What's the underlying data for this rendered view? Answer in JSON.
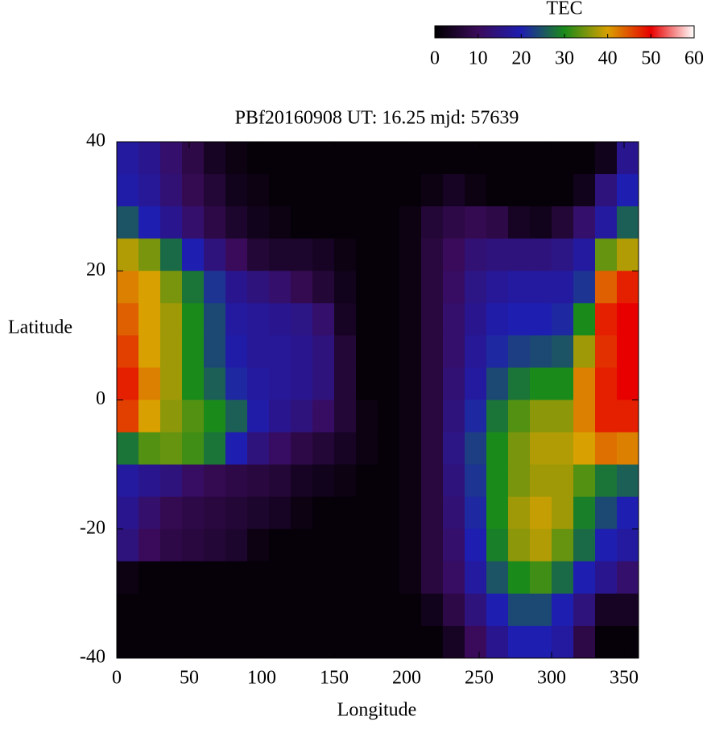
{
  "chart_data": {
    "type": "heatmap",
    "title": "PBf20160908  UT: 16.25  mjd: 57639",
    "x_label": "Longitude",
    "y_label": "Latitude",
    "x": [
      7.5,
      22.5,
      37.5,
      52.5,
      67.5,
      82.5,
      97.5,
      112.5,
      127.5,
      142.5,
      157.5,
      172.5,
      187.5,
      202.5,
      217.5,
      232.5,
      247.5,
      262.5,
      277.5,
      292.5,
      307.5,
      322.5,
      337.5,
      352.5
    ],
    "y": [
      37.5,
      32.5,
      27.5,
      22.5,
      17.5,
      12.5,
      7.5,
      2.5,
      -2.5,
      -7.5,
      -12.5,
      -17.5,
      -22.5,
      -27.5,
      -32.5,
      -37.5
    ],
    "values": [
      [
        18,
        16,
        12,
        8,
        4,
        2,
        1,
        1,
        1,
        1,
        1,
        1,
        1,
        1,
        1,
        1,
        1,
        1,
        1,
        1,
        1,
        1,
        3,
        16
      ],
      [
        19,
        17,
        13,
        9,
        6,
        3,
        2,
        1,
        1,
        1,
        1,
        1,
        1,
        1,
        2,
        4,
        2,
        1,
        1,
        1,
        1,
        3,
        14,
        20
      ],
      [
        25,
        20,
        16,
        12,
        8,
        5,
        3,
        2,
        1,
        1,
        1,
        1,
        1,
        2,
        6,
        8,
        9,
        8,
        4,
        3,
        6,
        12,
        18,
        26
      ],
      [
        38,
        35,
        27,
        20,
        14,
        10,
        6,
        5,
        5,
        4,
        2,
        1,
        1,
        2,
        7,
        10,
        13,
        14,
        14,
        14,
        15,
        18,
        34,
        38
      ],
      [
        42,
        40,
        35,
        28,
        22,
        16,
        14,
        12,
        9,
        6,
        3,
        1,
        1,
        2,
        7,
        11,
        15,
        17,
        18,
        18,
        18,
        22,
        44,
        48
      ],
      [
        44,
        40,
        37,
        30,
        24,
        18,
        17,
        16,
        15,
        12,
        4,
        1,
        1,
        2,
        7,
        12,
        16,
        19,
        20,
        20,
        21,
        30,
        48,
        50
      ],
      [
        46,
        40,
        37,
        30,
        24,
        19,
        17,
        17,
        16,
        14,
        6,
        1,
        1,
        2,
        7,
        12,
        17,
        21,
        23,
        24,
        25,
        37,
        47,
        50
      ],
      [
        48,
        42,
        37,
        30,
        26,
        21,
        18,
        17,
        16,
        14,
        6,
        1,
        1,
        2,
        7,
        13,
        18,
        24,
        28,
        30,
        30,
        42,
        48,
        50
      ],
      [
        46,
        40,
        36,
        33,
        30,
        26,
        19,
        16,
        14,
        11,
        6,
        2,
        1,
        2,
        7,
        14,
        21,
        28,
        33,
        36,
        36,
        42,
        48,
        48
      ],
      [
        28,
        33,
        34,
        32,
        28,
        20,
        14,
        11,
        8,
        6,
        4,
        2,
        1,
        2,
        7,
        15,
        23,
        30,
        35,
        38,
        38,
        40,
        43,
        42
      ],
      [
        18,
        16,
        14,
        11,
        9,
        8,
        7,
        6,
        4,
        3,
        2,
        1,
        1,
        2,
        7,
        14,
        22,
        30,
        35,
        37,
        37,
        33,
        28,
        26
      ],
      [
        16,
        12,
        9,
        8,
        7,
        6,
        5,
        4,
        2,
        1,
        1,
        1,
        1,
        2,
        7,
        13,
        21,
        30,
        37,
        39,
        37,
        29,
        24,
        20
      ],
      [
        14,
        10,
        8,
        7,
        6,
        5,
        2,
        1,
        1,
        1,
        1,
        1,
        1,
        2,
        7,
        12,
        20,
        29,
        36,
        38,
        34,
        27,
        20,
        18
      ],
      [
        2,
        1,
        1,
        1,
        1,
        1,
        1,
        1,
        1,
        1,
        1,
        1,
        1,
        2,
        7,
        11,
        18,
        25,
        30,
        32,
        27,
        20,
        16,
        12
      ],
      [
        1,
        1,
        1,
        1,
        1,
        1,
        1,
        1,
        1,
        1,
        1,
        1,
        1,
        1,
        3,
        8,
        14,
        20,
        24,
        24,
        20,
        14,
        4,
        4
      ],
      [
        1,
        1,
        1,
        1,
        1,
        1,
        1,
        1,
        1,
        1,
        1,
        1,
        1,
        1,
        1,
        4,
        10,
        16,
        20,
        20,
        18,
        8,
        1,
        1
      ]
    ],
    "xlim": [
      0,
      360
    ],
    "xticks": [
      0,
      50,
      100,
      150,
      200,
      250,
      300,
      350
    ],
    "ylim": [
      -40,
      40
    ],
    "yticks": [
      -40,
      -20,
      0,
      20,
      40
    ],
    "colorbar": {
      "label": "TEC",
      "lim": [
        0,
        60
      ],
      "ticks": [
        0,
        10,
        20,
        30,
        40,
        50,
        60
      ],
      "colors": [
        "#000000",
        "#3a0b5a",
        "#1e1eb0",
        "#1a8a1a",
        "#d8a000",
        "#e80000",
        "#ffffff"
      ]
    }
  }
}
